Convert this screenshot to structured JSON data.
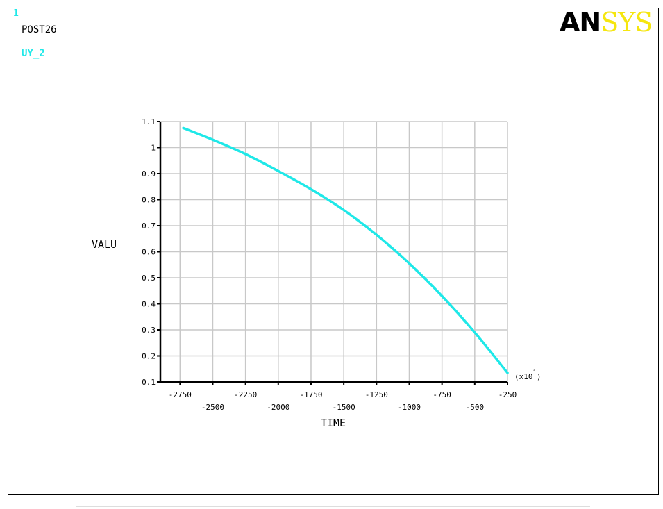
{
  "header": {
    "window_number": "1",
    "module": "POST26",
    "series_label": "UY_2",
    "logo_an": "AN",
    "logo_sys": "SYS"
  },
  "colors": {
    "series": "#1fe8e8",
    "grid": "#c8c8c8",
    "axis": "#000000",
    "logo_accent": "#f5e60f"
  },
  "chart_data": {
    "type": "line",
    "xlabel": "TIME",
    "ylabel": "VALU",
    "x_multiplier_label": "(x10",
    "x_multiplier_exp": "1",
    "x_multiplier_close": ")",
    "xlim": [
      -2900,
      -250
    ],
    "ylim": [
      0.1,
      1.1
    ],
    "x_ticks_upper": [
      "-2750",
      "-2250",
      "-1750",
      "-1250",
      "-750",
      "-250"
    ],
    "x_ticks_upper_values": [
      -2750,
      -2250,
      -1750,
      -1250,
      -750,
      -250
    ],
    "x_ticks_lower": [
      "-2500",
      "-2000",
      "-1500",
      "-1000",
      "-500"
    ],
    "x_ticks_lower_values": [
      -2500,
      -2000,
      -1500,
      -1000,
      -500
    ],
    "y_ticks": [
      "0.1",
      "0.2",
      "0.3",
      "0.4",
      "0.5",
      "0.6",
      "0.7",
      "0.8",
      "0.9",
      "1",
      "1.1"
    ],
    "y_ticks_values": [
      0.1,
      0.2,
      0.3,
      0.4,
      0.5,
      0.6,
      0.7,
      0.8,
      0.9,
      1.0,
      1.1
    ],
    "grid": true,
    "series": [
      {
        "name": "UY_2",
        "x": [
          -2725,
          -2500,
          -2250,
          -2000,
          -1750,
          -1500,
          -1250,
          -1000,
          -750,
          -500,
          -250
        ],
        "y": [
          1.075,
          1.03,
          0.975,
          0.91,
          0.84,
          0.76,
          0.665,
          0.555,
          0.43,
          0.29,
          0.135
        ]
      }
    ]
  }
}
